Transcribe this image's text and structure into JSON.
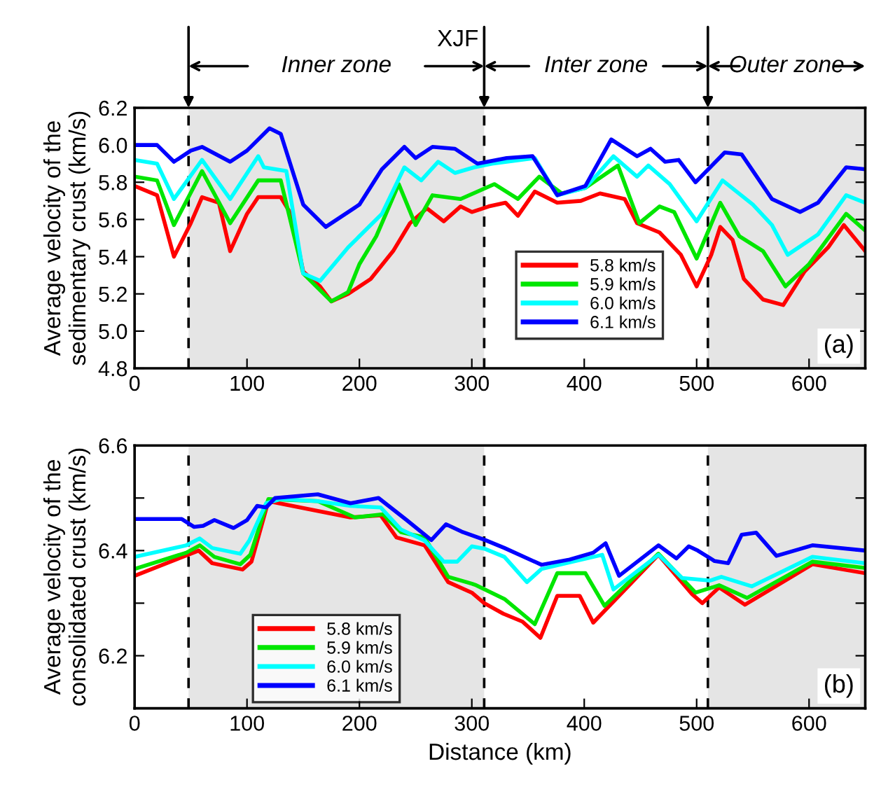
{
  "chart_data": [
    {
      "type": "line",
      "ylabel": "Average velocity of the\nsedimentary crust (km/s)",
      "xlim": [
        0,
        650
      ],
      "xticks": [
        0,
        100,
        200,
        300,
        400,
        500,
        600
      ],
      "ylim": [
        4.8,
        6.2
      ],
      "yticks": [
        4.8,
        {
          "value": 5.0,
          "label": "5.0"
        },
        5.2,
        5.4,
        5.6,
        5.8,
        {
          "value": 6.0,
          "label": "6.0"
        },
        6.2
      ],
      "grid": false,
      "legend": "bottom right",
      "line_style": "solid",
      "marker": "none",
      "bands": [
        {
          "axis": "x",
          "from": 48,
          "to": 311,
          "color": "#e5e5e5"
        },
        {
          "axis": "x",
          "from": 510,
          "to": 650,
          "color": "#e5e5e5"
        }
      ],
      "ref_lines": [
        {
          "axis": "x",
          "value": 48,
          "label": null,
          "line_style": "dashed"
        },
        {
          "axis": "x",
          "value": 311,
          "label": "XJF",
          "line_style": "dashed"
        },
        {
          "axis": "x",
          "value": 510,
          "label": null,
          "line_style": "dashed"
        }
      ],
      "annotations": [
        "Inner zone",
        "Inter zone",
        "Outer zone",
        "(a)"
      ],
      "series": [
        {
          "name": "5.8 km/s",
          "color": "#ff0000",
          "x": [
            0,
            20,
            35,
            50,
            60,
            75,
            85,
            100,
            110,
            130,
            140,
            150,
            165,
            175,
            190,
            210,
            230,
            245,
            260,
            275,
            290,
            300,
            315,
            330,
            341,
            356,
            376,
            397,
            414,
            436,
            447,
            467,
            486,
            500,
            513,
            521,
            532,
            542,
            559,
            577,
            596,
            617,
            631,
            650
          ],
          "values": [
            5.78,
            5.73,
            5.4,
            5.58,
            5.72,
            5.69,
            5.43,
            5.63,
            5.72,
            5.72,
            5.62,
            5.32,
            5.24,
            5.16,
            5.2,
            5.28,
            5.43,
            5.58,
            5.66,
            5.59,
            5.67,
            5.64,
            5.67,
            5.69,
            5.62,
            5.75,
            5.69,
            5.7,
            5.74,
            5.71,
            5.58,
            5.53,
            5.41,
            5.24,
            5.41,
            5.56,
            5.49,
            5.28,
            5.17,
            5.14,
            5.32,
            5.45,
            5.57,
            5.43
          ]
        },
        {
          "name": "5.9 km/s",
          "color": "#00e600",
          "x": [
            0,
            20,
            35,
            60,
            85,
            110,
            130,
            150,
            175,
            190,
            200,
            215,
            235,
            250,
            265,
            290,
            320,
            341,
            360,
            380,
            401,
            430,
            449,
            467,
            480,
            500,
            521,
            538,
            559,
            579,
            600,
            633,
            650
          ],
          "values": [
            5.83,
            5.81,
            5.57,
            5.86,
            5.58,
            5.81,
            5.81,
            5.31,
            5.16,
            5.21,
            5.36,
            5.51,
            5.79,
            5.57,
            5.73,
            5.71,
            5.79,
            5.71,
            5.83,
            5.74,
            5.77,
            5.89,
            5.58,
            5.67,
            5.64,
            5.39,
            5.69,
            5.51,
            5.43,
            5.24,
            5.36,
            5.63,
            5.54
          ]
        },
        {
          "name": "6.0 km/s",
          "color": "#00ffff",
          "x": [
            0,
            20,
            35,
            60,
            85,
            110,
            115,
            135,
            150,
            165,
            190,
            220,
            240,
            255,
            270,
            285,
            302,
            318,
            356,
            376,
            401,
            426,
            447,
            457,
            476,
            500,
            523,
            550,
            567,
            581,
            608,
            633,
            650
          ],
          "values": [
            5.92,
            5.9,
            5.71,
            5.92,
            5.71,
            5.94,
            5.88,
            5.86,
            5.31,
            5.27,
            5.45,
            5.63,
            5.88,
            5.81,
            5.91,
            5.85,
            5.88,
            5.9,
            5.93,
            5.73,
            5.77,
            5.94,
            5.83,
            5.89,
            5.79,
            5.59,
            5.81,
            5.68,
            5.57,
            5.41,
            5.52,
            5.73,
            5.69
          ]
        },
        {
          "name": "6.1 km/s",
          "color": "#0000ff",
          "x": [
            0,
            20,
            35,
            50,
            60,
            85,
            100,
            120,
            130,
            150,
            170,
            200,
            220,
            240,
            250,
            265,
            285,
            305,
            331,
            354,
            376,
            401,
            424,
            447,
            459,
            472,
            484,
            499,
            525,
            540,
            567,
            592,
            608,
            633,
            650
          ],
          "values": [
            6.0,
            6.0,
            5.91,
            5.97,
            5.99,
            5.91,
            5.97,
            6.09,
            6.06,
            5.68,
            5.56,
            5.68,
            5.87,
            5.99,
            5.93,
            5.99,
            5.98,
            5.9,
            5.93,
            5.94,
            5.73,
            5.78,
            6.03,
            5.94,
            5.98,
            5.91,
            5.92,
            5.8,
            5.96,
            5.95,
            5.71,
            5.64,
            5.69,
            5.88,
            5.87
          ]
        }
      ]
    },
    {
      "type": "line",
      "xlabel": "Distance (km)",
      "ylabel": "Average velocity of the\nconsolidated crust (km/s)",
      "xlim": [
        0,
        650
      ],
      "xticks": [
        0,
        100,
        200,
        300,
        400,
        500,
        600
      ],
      "ylim": [
        6.1,
        6.6
      ],
      "yticks": [
        6.2,
        {
          "value": 6.3,
          "label": null
        },
        6.4,
        {
          "value": 6.5,
          "label": null
        },
        6.6
      ],
      "grid": false,
      "legend": "bottom left",
      "line_style": "solid",
      "marker": "none",
      "bands": [
        {
          "axis": "x",
          "from": 48,
          "to": 311,
          "color": "#e5e5e5"
        },
        {
          "axis": "x",
          "from": 510,
          "to": 650,
          "color": "#e5e5e5"
        }
      ],
      "ref_lines": [
        {
          "axis": "x",
          "value": 48,
          "line_style": "dashed"
        },
        {
          "axis": "x",
          "value": 311,
          "line_style": "dashed"
        },
        {
          "axis": "x",
          "value": 510,
          "line_style": "dashed"
        }
      ],
      "annotations": [
        "(b)"
      ],
      "series": [
        {
          "name": "5.8 km/s",
          "color": "#ff0000",
          "x": [
            0,
            57,
            69,
            96,
            104,
            119,
            192,
            219,
            233,
            258,
            279,
            300,
            311,
            328,
            345,
            361,
            376,
            396,
            408,
            466,
            496,
            505,
            520,
            543,
            603,
            650
          ],
          "values": [
            6.352,
            6.4,
            6.376,
            6.364,
            6.379,
            6.494,
            6.463,
            6.467,
            6.425,
            6.41,
            6.34,
            6.32,
            6.3,
            6.28,
            6.265,
            6.234,
            6.314,
            6.314,
            6.263,
            6.392,
            6.317,
            6.3,
            6.33,
            6.297,
            6.374,
            6.357
          ]
        },
        {
          "name": "5.9 km/s",
          "color": "#00e600",
          "x": [
            0,
            46,
            58,
            71,
            94,
            103,
            119,
            163,
            196,
            221,
            237,
            258,
            279,
            300,
            304,
            329,
            356,
            376,
            401,
            418,
            466,
            499,
            520,
            545,
            603,
            650
          ],
          "values": [
            6.365,
            6.396,
            6.41,
            6.388,
            6.374,
            6.392,
            6.498,
            6.494,
            6.463,
            6.469,
            6.435,
            6.425,
            6.35,
            6.337,
            6.334,
            6.308,
            6.26,
            6.357,
            6.357,
            6.295,
            6.394,
            6.32,
            6.334,
            6.31,
            6.379,
            6.367
          ]
        },
        {
          "name": "6.0 km/s",
          "color": "#00ffff",
          "x": [
            0,
            46,
            58,
            69,
            94,
            102,
            117,
            130,
            163,
            192,
            219,
            237,
            258,
            275,
            287,
            300,
            312,
            329,
            349,
            362,
            416,
            426,
            466,
            487,
            512,
            522,
            549,
            603,
            650
          ],
          "values": [
            6.388,
            6.41,
            6.423,
            6.405,
            6.394,
            6.419,
            6.49,
            6.498,
            6.494,
            6.485,
            6.482,
            6.44,
            6.419,
            6.379,
            6.379,
            6.408,
            6.403,
            6.388,
            6.34,
            6.365,
            6.392,
            6.326,
            6.392,
            6.348,
            6.343,
            6.35,
            6.332,
            6.388,
            6.376
          ]
        },
        {
          "name": "6.1 km/s",
          "color": "#0000ff",
          "x": [
            0,
            34,
            42,
            53,
            61,
            71,
            88,
            100,
            109,
            117,
            125,
            163,
            192,
            217,
            242,
            264,
            277,
            291,
            312,
            329,
            362,
            387,
            408,
            419,
            431,
            466,
            482,
            493,
            501,
            516,
            528,
            540,
            553,
            571,
            603,
            650
          ],
          "values": [
            6.46,
            6.46,
            6.46,
            6.445,
            6.447,
            6.458,
            6.443,
            6.458,
            6.485,
            6.482,
            6.5,
            6.507,
            6.49,
            6.5,
            6.458,
            6.42,
            6.45,
            6.436,
            6.42,
            6.405,
            6.373,
            6.383,
            6.396,
            6.414,
            6.352,
            6.41,
            6.385,
            6.408,
            6.4,
            6.38,
            6.376,
            6.43,
            6.434,
            6.39,
            6.41,
            6.4
          ]
        }
      ]
    }
  ]
}
